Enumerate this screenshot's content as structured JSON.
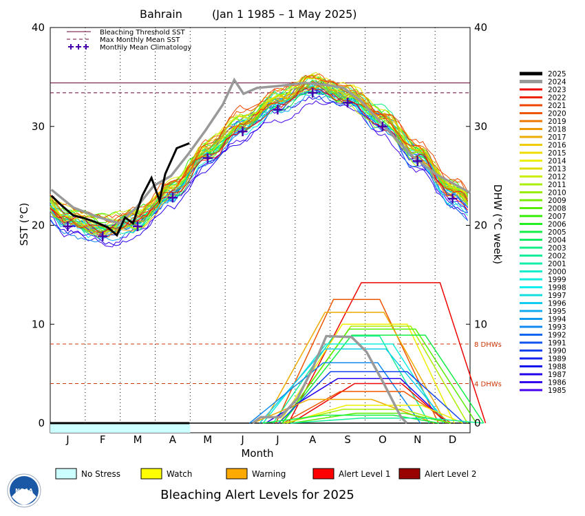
{
  "chart_data": {
    "type": "line",
    "title": "Bahrain",
    "subtitle": "(Jan 1 1985 – 1 May 2025)",
    "xlabel": "Month",
    "ylabel_left": "SST (°C)",
    "ylabel_right": "DHW (°C week)",
    "months": [
      "J",
      "F",
      "M",
      "A",
      "M",
      "J",
      "J",
      "A",
      "S",
      "O",
      "N",
      "D"
    ],
    "yticks_left": [
      "0",
      "10",
      "20",
      "30",
      "40"
    ],
    "yticks_right": [
      "0",
      "10",
      "20",
      "30",
      "40"
    ],
    "ylim": [
      0,
      40
    ],
    "legend_top": [
      {
        "label": "Bleaching Threshold SST",
        "color": "#660033",
        "style": "solid"
      },
      {
        "label": "Max Monthly Mean SST",
        "color": "#660033",
        "style": "dashed"
      },
      {
        "label": "Monthly Mean Climatology",
        "color": "#4400aa",
        "style": "plus"
      }
    ],
    "bleaching_threshold": 34.4,
    "max_monthly_mean": 33.4,
    "dhw_levels": [
      {
        "value": 8,
        "label": "8 DHWs"
      },
      {
        "value": 4,
        "label": "4 DHWs"
      }
    ],
    "climatology": [
      {
        "month": 0.5,
        "sst": 19.9
      },
      {
        "month": 1.5,
        "sst": 18.9
      },
      {
        "month": 2.5,
        "sst": 19.9
      },
      {
        "month": 3.5,
        "sst": 22.8
      },
      {
        "month": 4.5,
        "sst": 26.8
      },
      {
        "month": 5.5,
        "sst": 29.5
      },
      {
        "month": 6.5,
        "sst": 31.7
      },
      {
        "month": 7.5,
        "sst": 33.4
      },
      {
        "month": 8.5,
        "sst": 32.4
      },
      {
        "month": 9.5,
        "sst": 30.0
      },
      {
        "month": 10.5,
        "sst": 26.5
      },
      {
        "month": 11.5,
        "sst": 22.7
      }
    ],
    "series_2025_sst": [
      {
        "day": 1,
        "sst": 23.0
      },
      {
        "day": 10,
        "sst": 22.0
      },
      {
        "day": 20,
        "sst": 21.0
      },
      {
        "day": 30,
        "sst": 20.7
      },
      {
        "day": 40,
        "sst": 20.3
      },
      {
        "day": 50,
        "sst": 19.8
      },
      {
        "day": 58,
        "sst": 19.0
      },
      {
        "day": 65,
        "sst": 20.8
      },
      {
        "day": 72,
        "sst": 20.2
      },
      {
        "day": 80,
        "sst": 23.0
      },
      {
        "day": 88,
        "sst": 24.8
      },
      {
        "day": 95,
        "sst": 22.5
      },
      {
        "day": 100,
        "sst": 25.2
      },
      {
        "day": 110,
        "sst": 27.8
      },
      {
        "day": 121,
        "sst": 28.3
      }
    ],
    "series_2024_sst": [
      {
        "day": 1,
        "sst": 23.6
      },
      {
        "day": 20,
        "sst": 21.8
      },
      {
        "day": 40,
        "sst": 20.9
      },
      {
        "day": 60,
        "sst": 20.2
      },
      {
        "day": 75,
        "sst": 21.8
      },
      {
        "day": 90,
        "sst": 24.0
      },
      {
        "day": 105,
        "sst": 25.0
      },
      {
        "day": 120,
        "sst": 27.2
      },
      {
        "day": 135,
        "sst": 29.6
      },
      {
        "day": 150,
        "sst": 32.2
      },
      {
        "day": 160,
        "sst": 34.7
      },
      {
        "day": 168,
        "sst": 33.3
      },
      {
        "day": 180,
        "sst": 33.9
      },
      {
        "day": 200,
        "sst": 34.1
      },
      {
        "day": 220,
        "sst": 34.4
      },
      {
        "day": 240,
        "sst": 34.2
      },
      {
        "day": 255,
        "sst": 33.9
      },
      {
        "day": 270,
        "sst": 32.6
      },
      {
        "day": 285,
        "sst": 30.7
      },
      {
        "day": 300,
        "sst": 28.8
      },
      {
        "day": 315,
        "sst": 27.0
      },
      {
        "day": 335,
        "sst": 25.2
      },
      {
        "day": 365,
        "sst": 23.3
      }
    ],
    "series_2024_dhw": [
      {
        "day": 176,
        "dhw": 0
      },
      {
        "day": 183,
        "dhw": 0.6
      },
      {
        "day": 200,
        "dhw": 0.6
      },
      {
        "day": 215,
        "dhw": 2.5
      },
      {
        "day": 228,
        "dhw": 5.5
      },
      {
        "day": 240,
        "dhw": 8.8
      },
      {
        "day": 262,
        "dhw": 8.7
      },
      {
        "day": 275,
        "dhw": 7.2
      },
      {
        "day": 290,
        "dhw": 4.0
      },
      {
        "day": 305,
        "dhw": 0.6
      },
      {
        "day": 310,
        "dhw": 0
      }
    ],
    "dhw_peaks": [
      14.2,
      12.5,
      11.2,
      10.0,
      9.8,
      9.5,
      8.9,
      8.8,
      8.0,
      7.5,
      6.1,
      5.2,
      4.5,
      4.0,
      3.2,
      2.4,
      1.8,
      1.4,
      1.0,
      0.8,
      0.5
    ],
    "years": [
      "2025",
      "2024",
      "2023",
      "2022",
      "2021",
      "2020",
      "2019",
      "2018",
      "2017",
      "2016",
      "2015",
      "2014",
      "2013",
      "2012",
      "2011",
      "2010",
      "2009",
      "2008",
      "2007",
      "2006",
      "2005",
      "2004",
      "2003",
      "2002",
      "2001",
      "2000",
      "1999",
      "1998",
      "1997",
      "1996",
      "1995",
      "1994",
      "1993",
      "1992",
      "1991",
      "1990",
      "1989",
      "1988",
      "1987",
      "1986",
      "1985"
    ],
    "year_colors": [
      "#000000",
      "#999999",
      "#ee0000",
      "#ee2200",
      "#ee4400",
      "#ee5500",
      "#ee7700",
      "#ee9900",
      "#eeaa00",
      "#eecc00",
      "#eedd00",
      "#eeee00",
      "#dddd00",
      "#ccee00",
      "#aaee00",
      "#99ee00",
      "#77ee00",
      "#55ee00",
      "#33ee00",
      "#22ee22",
      "#11ee44",
      "#11ee66",
      "#11ee88",
      "#11ee99",
      "#11eeaa",
      "#11eecc",
      "#11eedd",
      "#11eeee",
      "#11dddd",
      "#11ccee",
      "#11aaee",
      "#1199ee",
      "#1188ee",
      "#1166ee",
      "#1155ee",
      "#1144ee",
      "#1122ee",
      "#1111ee",
      "#2200ee",
      "#3300ee",
      "#4400ee"
    ],
    "grid": "dotted-monthly",
    "legend_placement": "right"
  },
  "alert_legend": [
    {
      "label": "No Stress",
      "color": "#ccffff"
    },
    {
      "label": "Watch",
      "color": "#ffff00"
    },
    {
      "label": "Warning",
      "color": "#ffaa00"
    },
    {
      "label": "Alert Level 1",
      "color": "#ff0000"
    },
    {
      "label": "Alert Level 2",
      "color": "#990000"
    }
  ],
  "alert_strip": [
    {
      "level": "No Stress",
      "start_month": 0,
      "end_month": 4
    }
  ],
  "footer_title": "Bleaching Alert Levels for 2025",
  "logo_text": "NOAA",
  "icons": {
    "logo": "noaa-logo-icon"
  }
}
